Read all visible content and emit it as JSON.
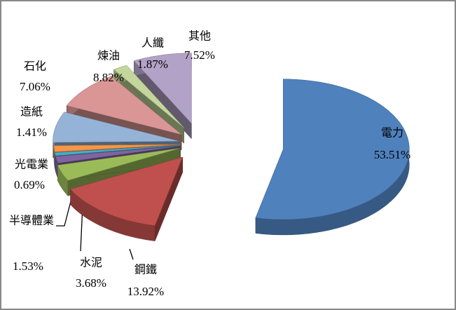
{
  "chart_data": {
    "type": "pie",
    "categories": [
      "電力",
      "鋼鐵",
      "水泥",
      "半導體業",
      "光電業",
      "造紙",
      "石化",
      "煉油",
      "人纖",
      "其他"
    ],
    "values": [
      53.51,
      13.92,
      3.68,
      1.53,
      0.69,
      1.41,
      7.06,
      8.82,
      1.87,
      7.52
    ],
    "value_labels": [
      "53.51%",
      "13.92%",
      "3.68%",
      "1.53%",
      "0.69%",
      "1.41%",
      "7.06%",
      "8.82%",
      "1.87%",
      "7.52%"
    ],
    "colors": [
      "#4f81bd",
      "#c0504d",
      "#9bbb59",
      "#8064a2",
      "#4bacc6",
      "#f79646",
      "#95b3d7",
      "#d99694",
      "#c3d69b",
      "#b3a2c7"
    ]
  }
}
